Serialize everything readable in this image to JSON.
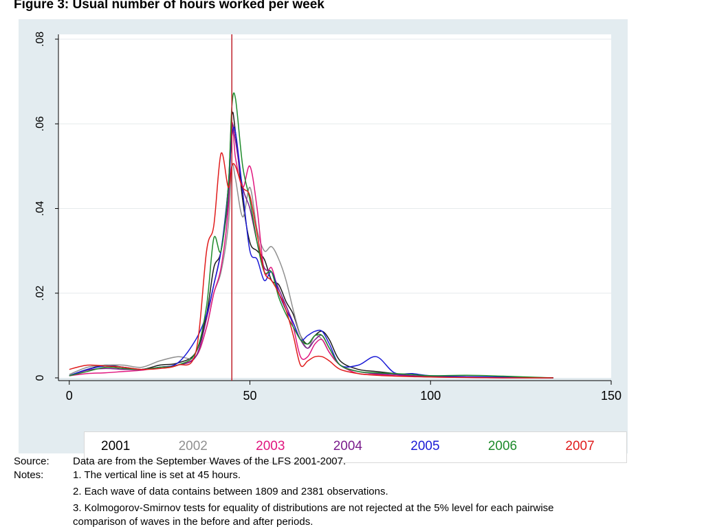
{
  "figure_title": "Figure 3: Usual number of hours worked per week",
  "chart_data": {
    "type": "line",
    "title": "",
    "xlabel": "",
    "ylabel": "",
    "xlim": [
      -3,
      150
    ],
    "ylim": [
      0,
      0.08
    ],
    "x_ticks": [
      0,
      50,
      100,
      150
    ],
    "x_tick_labels": [
      "0",
      "50",
      "100",
      "150"
    ],
    "y_ticks": [
      0,
      0.02,
      0.04,
      0.06,
      0.08
    ],
    "y_tick_labels": [
      "0",
      ".02",
      ".04",
      ".06",
      ".08"
    ],
    "grid": "horizontal",
    "legend_position": "bottom",
    "vline": 45,
    "vline_color": "#c0202a",
    "series": [
      {
        "name": "2001",
        "color": "#1a1a1a",
        "x": [
          0,
          5,
          10,
          15,
          20,
          25,
          30,
          35,
          38,
          40,
          42,
          44,
          45,
          46,
          48,
          50,
          52,
          54,
          56,
          58,
          60,
          62,
          64,
          66,
          68,
          70,
          72,
          75,
          80,
          85,
          90,
          95,
          100,
          110,
          120,
          134
        ],
        "y": [
          0.0005,
          0.002,
          0.003,
          0.0025,
          0.002,
          0.003,
          0.0035,
          0.006,
          0.015,
          0.026,
          0.03,
          0.045,
          0.062,
          0.058,
          0.042,
          0.032,
          0.03,
          0.028,
          0.023,
          0.022,
          0.018,
          0.015,
          0.01,
          0.008,
          0.01,
          0.011,
          0.009,
          0.004,
          0.002,
          0.0015,
          0.001,
          0.0005,
          0.0004,
          0.0002,
          0.0001,
          0.0
        ]
      },
      {
        "name": "2002",
        "color": "#909090",
        "x": [
          0,
          5,
          10,
          15,
          20,
          25,
          30,
          35,
          38,
          40,
          42,
          44,
          45,
          46,
          48,
          50,
          52,
          54,
          56,
          58,
          60,
          62,
          64,
          66,
          68,
          70,
          72,
          75,
          80,
          85,
          90,
          95,
          100,
          110,
          120,
          134
        ],
        "y": [
          0.0008,
          0.0025,
          0.003,
          0.003,
          0.0025,
          0.004,
          0.005,
          0.005,
          0.012,
          0.02,
          0.025,
          0.036,
          0.05,
          0.047,
          0.038,
          0.045,
          0.035,
          0.03,
          0.031,
          0.028,
          0.023,
          0.016,
          0.01,
          0.007,
          0.01,
          0.009,
          0.006,
          0.003,
          0.0015,
          0.001,
          0.0008,
          0.0005,
          0.0003,
          0.0002,
          0.0001,
          0.0
        ]
      },
      {
        "name": "2003",
        "color": "#e0157e",
        "x": [
          0,
          5,
          10,
          15,
          20,
          25,
          30,
          35,
          38,
          40,
          42,
          44,
          45,
          46,
          48,
          50,
          52,
          54,
          56,
          58,
          60,
          62,
          64,
          66,
          68,
          70,
          72,
          75,
          80,
          85,
          90,
          95,
          100,
          110,
          120,
          134
        ],
        "y": [
          0.0005,
          0.001,
          0.0012,
          0.0015,
          0.0018,
          0.0025,
          0.003,
          0.005,
          0.012,
          0.02,
          0.026,
          0.04,
          0.06,
          0.052,
          0.045,
          0.05,
          0.04,
          0.025,
          0.026,
          0.02,
          0.017,
          0.012,
          0.005,
          0.005,
          0.008,
          0.009,
          0.006,
          0.003,
          0.001,
          0.0008,
          0.0005,
          0.0004,
          0.0002,
          0.0001,
          0.0,
          0.0
        ]
      },
      {
        "name": "2004",
        "color": "#7a1c8c",
        "x": [
          0,
          5,
          10,
          15,
          20,
          25,
          30,
          35,
          38,
          40,
          42,
          44,
          45,
          46,
          48,
          50,
          52,
          54,
          56,
          58,
          60,
          62,
          64,
          66,
          68,
          70,
          72,
          75,
          80,
          85,
          90,
          95,
          100,
          110,
          120,
          134
        ],
        "y": [
          0.0005,
          0.0018,
          0.0022,
          0.002,
          0.002,
          0.0025,
          0.003,
          0.005,
          0.014,
          0.022,
          0.03,
          0.042,
          0.059,
          0.056,
          0.045,
          0.04,
          0.032,
          0.026,
          0.025,
          0.021,
          0.017,
          0.013,
          0.009,
          0.007,
          0.009,
          0.01,
          0.007,
          0.003,
          0.0015,
          0.001,
          0.0008,
          0.0005,
          0.0003,
          0.0002,
          0.0001,
          0.0
        ]
      },
      {
        "name": "2005",
        "color": "#1a1ad6",
        "x": [
          0,
          5,
          10,
          15,
          20,
          25,
          30,
          35,
          38,
          40,
          42,
          44,
          45,
          46,
          48,
          50,
          52,
          54,
          56,
          58,
          60,
          62,
          64,
          66,
          68,
          70,
          72,
          75,
          80,
          85,
          90,
          95,
          100,
          110,
          120,
          134
        ],
        "y": [
          0.0005,
          0.002,
          0.0028,
          0.0025,
          0.002,
          0.0025,
          0.0035,
          0.009,
          0.015,
          0.022,
          0.03,
          0.045,
          0.057,
          0.058,
          0.044,
          0.03,
          0.028,
          0.023,
          0.025,
          0.02,
          0.016,
          0.013,
          0.009,
          0.01,
          0.011,
          0.011,
          0.008,
          0.003,
          0.003,
          0.005,
          0.0012,
          0.001,
          0.0005,
          0.0003,
          0.0002,
          0.0
        ]
      },
      {
        "name": "2006",
        "color": "#1d8a2a",
        "x": [
          0,
          5,
          10,
          15,
          20,
          25,
          30,
          35,
          38,
          40,
          42,
          44,
          45,
          46,
          48,
          50,
          52,
          54,
          56,
          58,
          60,
          62,
          64,
          66,
          68,
          70,
          72,
          75,
          80,
          85,
          90,
          95,
          100,
          110,
          120,
          134
        ],
        "y": [
          0.0005,
          0.0015,
          0.0025,
          0.0022,
          0.002,
          0.0025,
          0.003,
          0.006,
          0.017,
          0.033,
          0.03,
          0.045,
          0.064,
          0.066,
          0.05,
          0.042,
          0.032,
          0.025,
          0.025,
          0.019,
          0.015,
          0.012,
          0.009,
          0.008,
          0.01,
          0.01,
          0.007,
          0.003,
          0.0015,
          0.0012,
          0.001,
          0.0008,
          0.0005,
          0.0006,
          0.0004,
          0.0
        ]
      },
      {
        "name": "2007",
        "color": "#e01b1b",
        "x": [
          0,
          5,
          10,
          15,
          20,
          25,
          30,
          35,
          38,
          40,
          42,
          44,
          45,
          46,
          48,
          50,
          52,
          54,
          56,
          58,
          60,
          62,
          64,
          66,
          68,
          70,
          72,
          75,
          80,
          85,
          90,
          95,
          100,
          110,
          120,
          134
        ],
        "y": [
          0.002,
          0.003,
          0.0028,
          0.0025,
          0.002,
          0.0022,
          0.003,
          0.006,
          0.03,
          0.036,
          0.053,
          0.045,
          0.05,
          0.05,
          0.045,
          0.043,
          0.034,
          0.025,
          0.023,
          0.02,
          0.016,
          0.01,
          0.003,
          0.004,
          0.005,
          0.005,
          0.004,
          0.002,
          0.001,
          0.0006,
          0.0004,
          0.0003,
          0.0002,
          0.0001,
          0.0,
          0.0
        ]
      }
    ]
  },
  "source_label": "Source:",
  "source_text": "Data are from the September Waves of the LFS 2001-2007.",
  "notes_label": "Notes:",
  "notes": [
    "1. The vertical line is set at 45 hours.",
    "2. Each wave of data contains between 1809 and 2381 observations.",
    "3. Kolmogorov-Smirnov tests for equality of distributions are not rejected at the 5% level for each pairwise",
    "comparison of waves in the before and after periods."
  ]
}
